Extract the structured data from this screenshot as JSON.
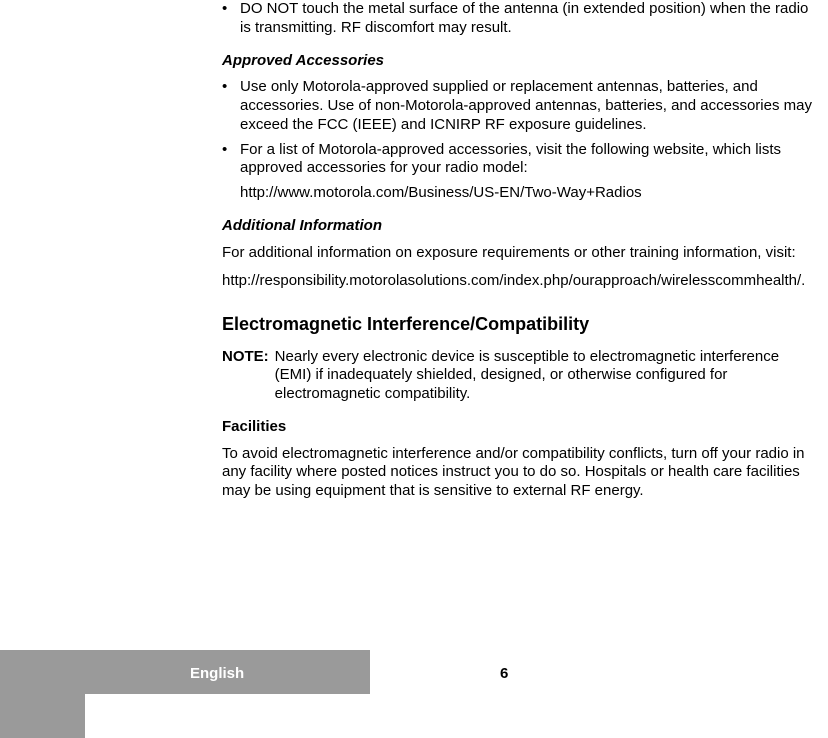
{
  "content": {
    "bullet1": "DO NOT touch the metal surface of the antenna (in extended position) when the radio is transmitting. RF discomfort may result.",
    "heading_accessories": "Approved Accessories",
    "bullet2": "Use only Motorola-approved supplied or replacement antennas, batteries, and accessories. Use of non-Motorola-approved antennas, batteries, and accessories may exceed the FCC (IEEE) and ICNIRP RF exposure guidelines.",
    "bullet3": "For a list of Motorola-approved accessories, visit the following website, which lists approved accessories for your radio model:",
    "url1": "http://www.motorola.com/Business/US-EN/Two-Way+Radios",
    "heading_additional": "Additional Information",
    "para1": "For additional information on exposure requirements or other training information, visit:",
    "url2": "http://responsibility.motorolasolutions.com/index.php/ourapproach/wirelesscommhealth/.",
    "section_emi": "Electromagnetic Interference/Compatibility",
    "note_label": "NOTE:",
    "note_text": "Nearly every electronic device is susceptible to electromagnetic interference (EMI) if inadequately shielded, designed, or otherwise configured for electromagnetic compatibility.",
    "heading_facilities": "Facilities",
    "para2": "To avoid electromagnetic interference and/or compatibility conflicts, turn off your radio in any facility where posted notices instruct you to do so. Hospitals or health care facilities may be using equipment that is sensitive to external RF energy."
  },
  "footer": {
    "language": "English",
    "page": "6"
  }
}
